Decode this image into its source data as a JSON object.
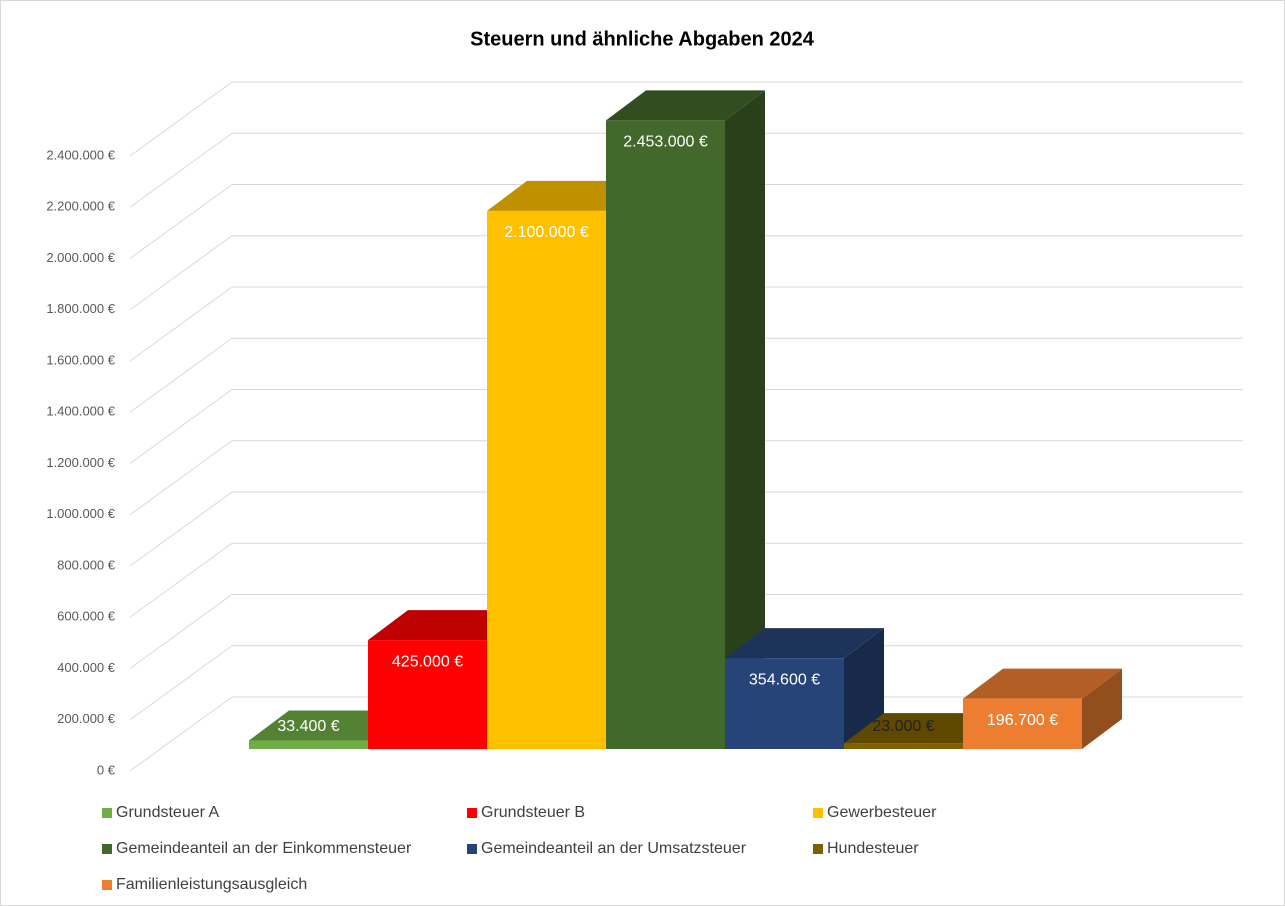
{
  "chart_data": {
    "type": "bar3d",
    "title": "Steuern und ähnliche Abgaben 2024",
    "ylim": [
      0,
      2400000
    ],
    "yticks": [
      {
        "value": 0,
        "label": "0 €"
      },
      {
        "value": 200000,
        "label": "200.000 €"
      },
      {
        "value": 400000,
        "label": "400.000 €"
      },
      {
        "value": 600000,
        "label": "600.000 €"
      },
      {
        "value": 800000,
        "label": "800.000 €"
      },
      {
        "value": 1000000,
        "label": "1.000.000 €"
      },
      {
        "value": 1200000,
        "label": "1.200.000 €"
      },
      {
        "value": 1400000,
        "label": "1.400.000 €"
      },
      {
        "value": 1600000,
        "label": "1.600.000 €"
      },
      {
        "value": 1800000,
        "label": "1.800.000 €"
      },
      {
        "value": 2000000,
        "label": "2.000.000 €"
      },
      {
        "value": 2200000,
        "label": "2.200.000 €"
      },
      {
        "value": 2400000,
        "label": "2.400.000 €"
      }
    ],
    "grid": true,
    "legend": "bottom",
    "series": [
      {
        "name": "Grundsteuer A",
        "color": "#70ad47",
        "values": [
          33400
        ],
        "value_labels": [
          "33.400 €"
        ]
      },
      {
        "name": "Grundsteuer B",
        "color": "#ff0000",
        "values": [
          425000
        ],
        "value_labels": [
          "425.000 €"
        ]
      },
      {
        "name": "Gewerbesteuer",
        "color": "#ffc000",
        "values": [
          2100000
        ],
        "value_labels": [
          "2.100.000 €"
        ]
      },
      {
        "name": "Gemeindeanteil an der Einkommensteuer",
        "color": "#43682b",
        "values": [
          2453000
        ],
        "value_labels": [
          "2.453.000 €"
        ]
      },
      {
        "name": "Gemeindeanteil an der Umsatzsteuer",
        "color": "#264478",
        "values": [
          354600
        ],
        "value_labels": [
          "354.600 €"
        ]
      },
      {
        "name": "Hundesteuer",
        "color": "#7f6000",
        "values": [
          23000
        ],
        "value_labels": [
          "23.000 €"
        ]
      },
      {
        "name": "Familienleistungsausgleich",
        "color": "#ed7d31",
        "values": [
          196700
        ],
        "value_labels": [
          "196.700 €"
        ]
      }
    ]
  }
}
